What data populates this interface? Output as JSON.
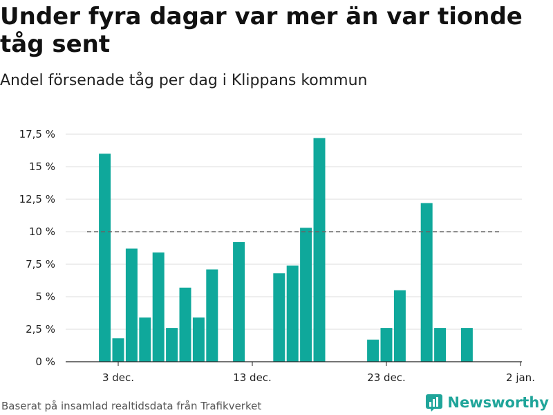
{
  "header": {
    "title": "Under fyra dagar var mer än var tionde tåg sent",
    "subtitle": "Andel försenade tåg per dag i Klippans kommun"
  },
  "footer": {
    "source": "Baserat på insamlad realtidsdata från Trafikverket",
    "brand": "Newsworthy"
  },
  "colors": {
    "bar": "#0fa89b",
    "reference_line": "#666666",
    "grid": "#dddddd",
    "brand": "#20a59a"
  },
  "chart_data": {
    "type": "bar",
    "x": [
      "2018-12-02",
      "2018-12-03",
      "2018-12-04",
      "2018-12-05",
      "2018-12-06",
      "2018-12-07",
      "2018-12-08",
      "2018-12-09",
      "2018-12-10",
      "2018-12-11",
      "2018-12-12",
      "2018-12-13",
      "2018-12-14",
      "2018-12-15",
      "2018-12-16",
      "2018-12-17",
      "2018-12-18",
      "2018-12-19",
      "2018-12-20",
      "2018-12-21",
      "2018-12-22",
      "2018-12-23",
      "2018-12-24",
      "2018-12-25",
      "2018-12-26",
      "2018-12-27",
      "2018-12-28",
      "2018-12-29",
      "2018-12-30",
      "2018-12-31"
    ],
    "values": [
      16.0,
      1.8,
      8.7,
      3.4,
      8.4,
      2.6,
      5.7,
      3.4,
      7.1,
      0,
      9.2,
      0,
      0,
      6.8,
      7.4,
      10.3,
      17.2,
      0,
      0,
      0,
      1.7,
      2.6,
      5.5,
      0,
      12.2,
      2.6,
      0,
      2.6,
      0,
      0
    ],
    "yticks": [
      {
        "value": 0,
        "label": "0 %"
      },
      {
        "value": 2.5,
        "label": "2,5 %"
      },
      {
        "value": 5,
        "label": "5 %"
      },
      {
        "value": 7.5,
        "label": "7,5 %"
      },
      {
        "value": 10,
        "label": "10 %"
      },
      {
        "value": 12.5,
        "label": "12,5 %"
      },
      {
        "value": 15,
        "label": "15 %"
      },
      {
        "value": 17.5,
        "label": "17,5 %"
      }
    ],
    "xticks": [
      {
        "value": "2018-12-03",
        "label": "3 dec."
      },
      {
        "value": "2018-12-13",
        "label": "13 dec."
      },
      {
        "value": "2018-12-23",
        "label": "23 dec."
      },
      {
        "value": "2019-01-02",
        "label": "2 jan."
      }
    ],
    "ylim": [
      0,
      17.5
    ],
    "reference_line": 10,
    "grid": true,
    "legend": "none",
    "xlabel": "",
    "ylabel": ""
  }
}
